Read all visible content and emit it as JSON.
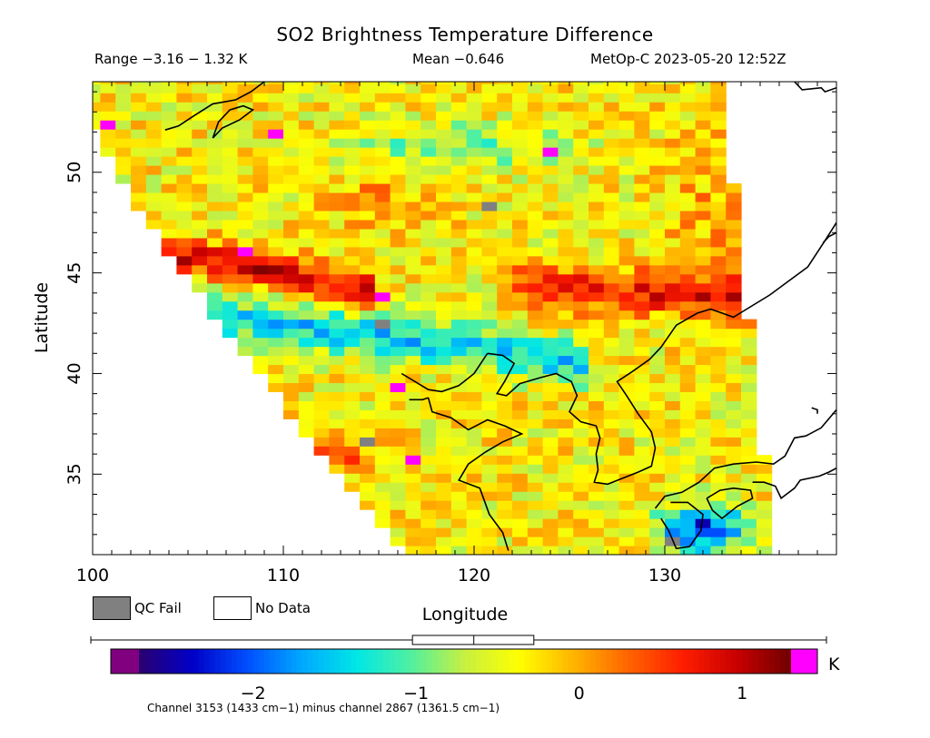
{
  "chart_data": {
    "type": "heatmap",
    "title": "SO2 Brightness Temperature Difference",
    "header_left": "Range −3.16 − 1.32 K",
    "header_center": "Mean −0.646",
    "header_right": "MetOp-C 2023-05-20 12:52Z",
    "xlabel": "Longitude",
    "ylabel": "Latitude",
    "xlim": [
      100,
      139
    ],
    "ylim": [
      31,
      54.5
    ],
    "x_ticks": [
      100,
      110,
      120,
      130
    ],
    "x_tick_labels": [
      "100",
      "110",
      "120",
      "130"
    ],
    "y_ticks": [
      35,
      40,
      45,
      50
    ],
    "y_tick_labels": [
      "35",
      "40",
      "45",
      "50"
    ],
    "colorbar": {
      "vmin": -2.7,
      "vmax": 1.3,
      "ticks": [
        -2,
        -1,
        0,
        1
      ],
      "tick_labels": [
        "−2",
        "−1",
        "0",
        "1"
      ],
      "unit": "K",
      "colors": [
        "#2a0070",
        "#0000c8",
        "#0050ff",
        "#00a8ff",
        "#00e6e6",
        "#50f0a0",
        "#c8f040",
        "#ffff00",
        "#ffb400",
        "#ff6400",
        "#ff1e00",
        "#c80000",
        "#700000"
      ],
      "under_color": "#800080",
      "over_color": "#ff00ff",
      "mean": -0.646,
      "range_box": [
        -1.0,
        -0.3
      ]
    },
    "legend": [
      {
        "label": "QC Fail",
        "color": "#808080"
      },
      {
        "label": "No Data",
        "color": "#ffffff"
      }
    ],
    "features": [
      {
        "name": "warm band north-west",
        "lat_start": 46.0,
        "lat_end": 44.5,
        "lon_start": 104,
        "lon_end": 113,
        "value": 0.9
      },
      {
        "name": "warm band east",
        "lat_start": 44.5,
        "lat_end": 43.5,
        "lon_start": 122,
        "lon_end": 134,
        "value": 0.6
      },
      {
        "name": "cold band central",
        "lat_start": 43.5,
        "lat_end": 41.0,
        "lon_start": 107,
        "lon_end": 124,
        "value": -1.6
      },
      {
        "name": "cold patch south-east",
        "lat": 32.5,
        "lon": 132,
        "value": -2.3
      }
    ],
    "footnote": "Channel 3153 (1433 cm−1) minus channel 2867 (1361.5 cm−1)"
  }
}
